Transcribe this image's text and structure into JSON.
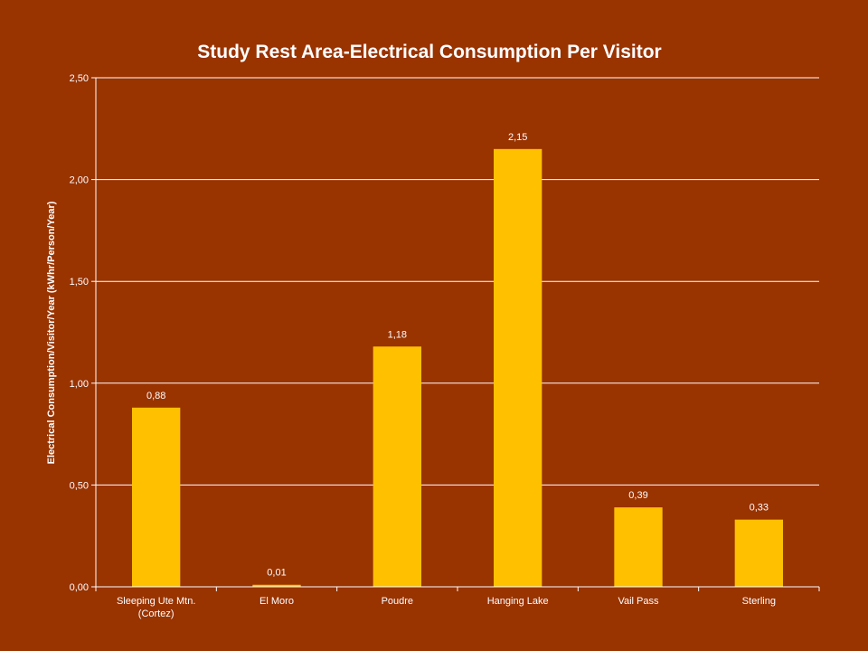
{
  "chart_data": {
    "type": "bar",
    "title": "Study Rest Area-Electrical Consumption Per Visitor",
    "xlabel": "",
    "ylabel": "Electrical Consumption/Visitor/Year (kWhr/Person/Year)",
    "categories": [
      [
        "Sleeping Ute Mtn.",
        "(Cortez)"
      ],
      [
        "El Moro"
      ],
      [
        "Poudre"
      ],
      [
        "Hanging Lake"
      ],
      [
        "Vail Pass"
      ],
      [
        "Sterling"
      ]
    ],
    "values": [
      0.88,
      0.01,
      1.18,
      2.15,
      0.39,
      0.33
    ],
    "value_labels": [
      "0,88",
      "0,01",
      "1,18",
      "2,15",
      "0,39",
      "0,33"
    ],
    "ylim": [
      0,
      2.5
    ],
    "yticks": [
      0,
      0.5,
      1.0,
      1.5,
      2.0,
      2.5
    ],
    "ytick_labels": [
      "0,00",
      "0,50",
      "1,00",
      "1,50",
      "2,00",
      "2,50"
    ],
    "grid": true,
    "legend": "none",
    "colors": {
      "background": "#993300",
      "bar": "#FFC000",
      "text": "#FFFFFF",
      "gridline": "#FFFFFF"
    }
  }
}
